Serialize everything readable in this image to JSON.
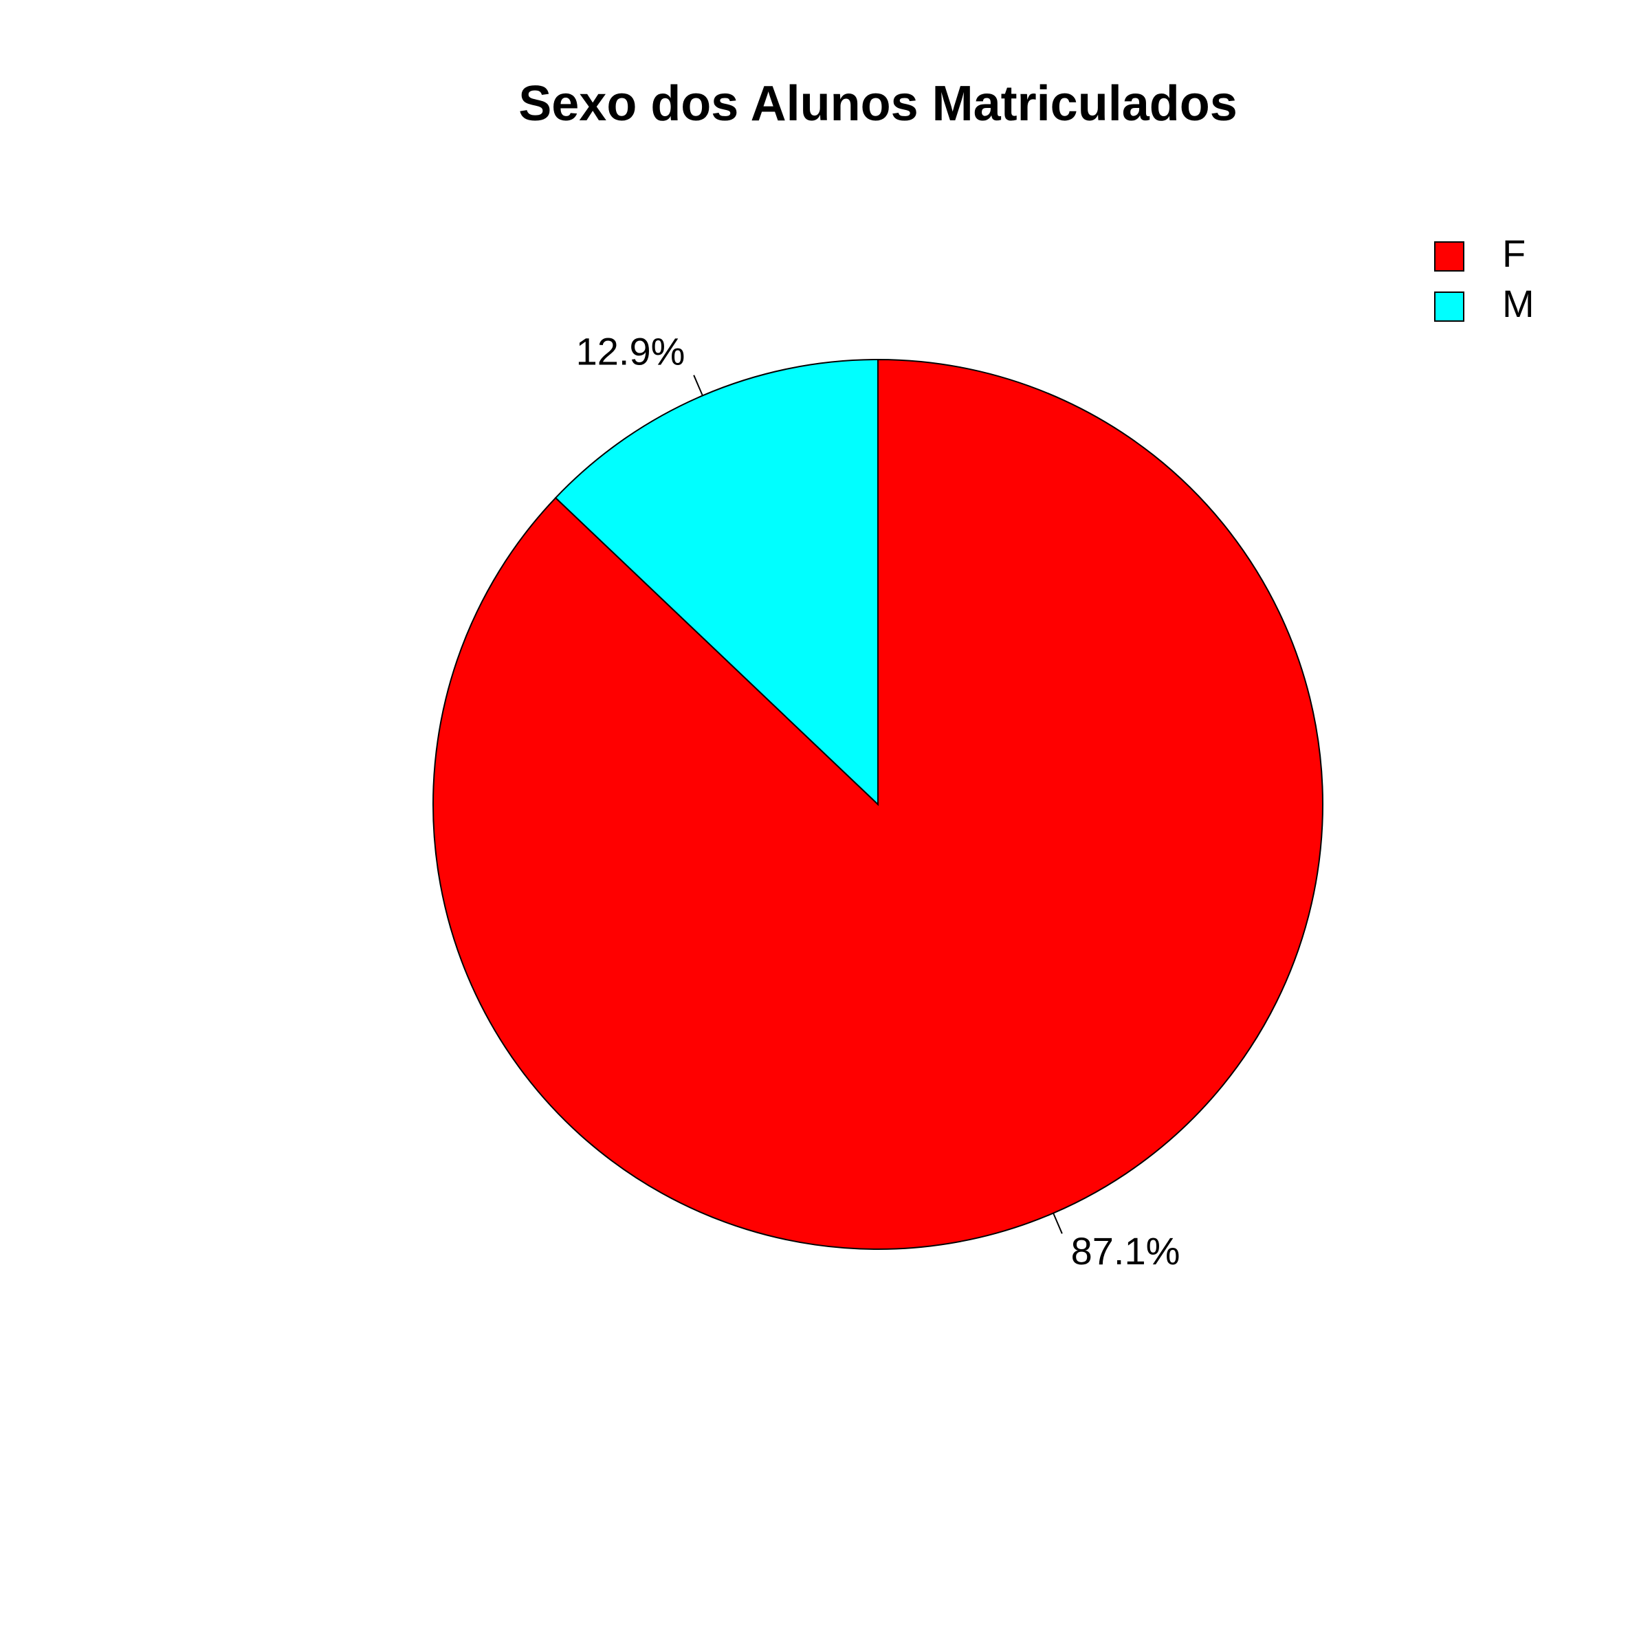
{
  "chart_data": {
    "type": "pie",
    "title": "Sexo dos Alunos Matriculados",
    "categories": [
      "F",
      "M"
    ],
    "values": [
      87.1,
      12.9
    ],
    "labels": [
      "87.1%",
      "12.9%"
    ],
    "colors": [
      "#ff0000",
      "#00ffff"
    ],
    "start": "12 o'clock",
    "direction": "clockwise",
    "legend": {
      "position": "top-right",
      "entries": [
        "F",
        "M"
      ]
    }
  }
}
